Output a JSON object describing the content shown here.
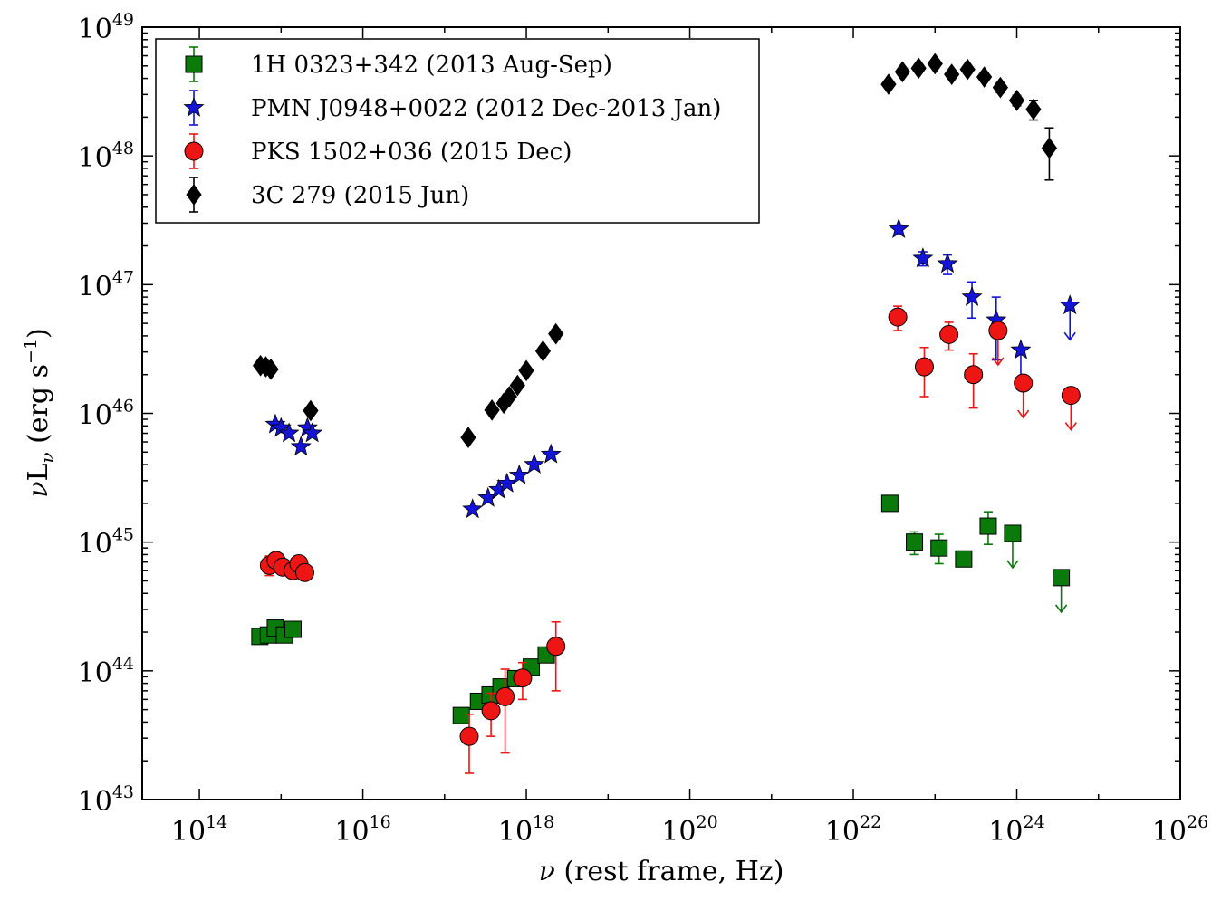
{
  "chart_data": {
    "type": "scatter",
    "xscale": "log",
    "yscale": "log",
    "xlabel_parts": {
      "symbol": "ν",
      "text": " (rest frame, Hz)"
    },
    "ylabel_parts": {
      "nu": "ν",
      "L": "L",
      "sub": "ν",
      "unit": " (erg s",
      "minus": "−1",
      "close": ")"
    },
    "xlim": [
      20000000000000.0,
      1e+26
    ],
    "ylim": [
      1e+43,
      1e+49
    ],
    "x_ticks": [
      {
        "base": "10",
        "exp": "14",
        "value": 100000000000000.0
      },
      {
        "base": "10",
        "exp": "16",
        "value": 1e+16
      },
      {
        "base": "10",
        "exp": "18",
        "value": 1e+18
      },
      {
        "base": "10",
        "exp": "20",
        "value": 1e+20
      },
      {
        "base": "10",
        "exp": "22",
        "value": 1e+22
      },
      {
        "base": "10",
        "exp": "24",
        "value": 1e+24
      },
      {
        "base": "10",
        "exp": "26",
        "value": 1e+26
      }
    ],
    "y_ticks": [
      {
        "base": "10",
        "exp": "43",
        "value": 1e+43
      },
      {
        "base": "10",
        "exp": "44",
        "value": 1e+44
      },
      {
        "base": "10",
        "exp": "45",
        "value": 1e+45
      },
      {
        "base": "10",
        "exp": "46",
        "value": 1e+46
      },
      {
        "base": "10",
        "exp": "47",
        "value": 1e+47
      },
      {
        "base": "10",
        "exp": "48",
        "value": 1e+48
      },
      {
        "base": "10",
        "exp": "49",
        "value": 1e+49
      }
    ],
    "legend_position": "top-left",
    "grid": false,
    "series": [
      {
        "name": "1H 0323+342 (2013 Aug-Sep)",
        "marker": "square",
        "color": "#0a7a0a",
        "points": [
          {
            "x": 550000000000000.0,
            "y": 1.85e+44,
            "lo": 1.75e+44,
            "hi": 1.95e+44
          },
          {
            "x": 700000000000000.0,
            "y": 1.9e+44,
            "lo": 1.8e+44,
            "hi": 2e+44
          },
          {
            "x": 850000000000000.0,
            "y": 2.15e+44,
            "lo": 2.05e+44,
            "hi": 2.25e+44
          },
          {
            "x": 1100000000000000.0,
            "y": 1.9e+44,
            "lo": 1.8e+44,
            "hi": 2e+44
          },
          {
            "x": 1400000000000000.0,
            "y": 2.1e+44,
            "lo": 2e+44,
            "hi": 2.2e+44
          },
          {
            "x": 1.6e+17,
            "y": 4.5e+43,
            "lo": 4.2e+43,
            "hi": 4.8e+43
          },
          {
            "x": 2.6e+17,
            "y": 5.8e+43,
            "lo": 5.4e+43,
            "hi": 6.2e+43
          },
          {
            "x": 3.6e+17,
            "y": 6.5e+43,
            "lo": 6.1e+43,
            "hi": 6.9e+43
          },
          {
            "x": 4.9e+17,
            "y": 7.5e+43,
            "lo": 7e+43,
            "hi": 8e+43
          },
          {
            "x": 7.4e+17,
            "y": 8.7e+43,
            "lo": 8.2e+43,
            "hi": 9.2e+43
          },
          {
            "x": 1.15e+18,
            "y": 1.07e+44,
            "lo": 1e+44,
            "hi": 1.14e+44
          },
          {
            "x": 1.75e+18,
            "y": 1.33e+44,
            "lo": 1.25e+44,
            "hi": 1.42e+44
          },
          {
            "x": 2.8e+22,
            "y": 2e+45,
            "lo": 1.9e+45,
            "hi": 2.1e+45
          },
          {
            "x": 5.6e+22,
            "y": 1e+45,
            "lo": 8e+44,
            "hi": 1.2e+45
          },
          {
            "x": 1.12e+23,
            "y": 9e+44,
            "lo": 6.8e+44,
            "hi": 1.15e+45
          },
          {
            "x": 2.24e+23,
            "y": 7.4e+44,
            "lo": 7e+44,
            "hi": 7.8e+44
          },
          {
            "x": 4.47e+23,
            "y": 1.33e+45,
            "lo": 9.6e+44,
            "hi": 1.72e+45
          },
          {
            "x": 8.9e+23,
            "y": 1.17e+45,
            "upper_limit": true
          },
          {
            "x": 3.5e+24,
            "y": 5.3e+44,
            "upper_limit": true
          }
        ]
      },
      {
        "name": "PMN J0948+0022 (2012 Dec-2013 Jan)",
        "marker": "star",
        "color": "#1414d8",
        "points": [
          {
            "x": 850000000000000.0,
            "y": 8.2e+45,
            "lo": 7.8e+45,
            "hi": 8.6e+45
          },
          {
            "x": 1000000000000000.0,
            "y": 7.7e+45,
            "lo": 7.3e+45,
            "hi": 8.1e+45
          },
          {
            "x": 1250000000000000.0,
            "y": 7e+45,
            "lo": 6.6e+45,
            "hi": 7.4e+45
          },
          {
            "x": 1750000000000000.0,
            "y": 5.5e+45,
            "lo": 5.2e+45,
            "hi": 5.8e+45
          },
          {
            "x": 2100000000000000.0,
            "y": 7.7e+45,
            "lo": 7.3e+45,
            "hi": 8.1e+45
          },
          {
            "x": 2400000000000000.0,
            "y": 7e+45,
            "lo": 6.6e+45,
            "hi": 7.4e+45
          },
          {
            "x": 2.2e+17,
            "y": 1.8e+45,
            "lo": 1.7e+45,
            "hi": 1.9e+45
          },
          {
            "x": 3.4e+17,
            "y": 2.2e+45,
            "lo": 2.1e+45,
            "hi": 2.3e+45
          },
          {
            "x": 4.6e+17,
            "y": 2.55e+45,
            "lo": 2.45e+45,
            "hi": 2.65e+45
          },
          {
            "x": 5.8e+17,
            "y": 2.85e+45,
            "lo": 2.75e+45,
            "hi": 2.95e+45
          },
          {
            "x": 8.2e+17,
            "y": 3.3e+45,
            "lo": 3.15e+45,
            "hi": 3.45e+45
          },
          {
            "x": 1.25e+18,
            "y": 4e+45,
            "lo": 3.8e+45,
            "hi": 4.2e+45
          },
          {
            "x": 2e+18,
            "y": 4.8e+45,
            "lo": 4.6e+45,
            "hi": 5e+45
          },
          {
            "x": 3.6e+22,
            "y": 2.7e+47,
            "lo": 2.5e+47,
            "hi": 2.9e+47
          },
          {
            "x": 7.1e+22,
            "y": 1.6e+47,
            "lo": 1.4e+47,
            "hi": 1.8e+47
          },
          {
            "x": 1.42e+23,
            "y": 1.45e+47,
            "lo": 1.2e+47,
            "hi": 1.7e+47
          },
          {
            "x": 2.83e+23,
            "y": 8e+46,
            "lo": 5.5e+46,
            "hi": 1.05e+47
          },
          {
            "x": 5.6e+23,
            "y": 5.3e+46,
            "lo": 2.6e+46,
            "hi": 8e+46
          },
          {
            "x": 1.12e+24,
            "y": 3.1e+46,
            "upper_limit": true
          },
          {
            "x": 4.47e+24,
            "y": 6.9e+46,
            "upper_limit": true
          }
        ]
      },
      {
        "name": "PKS 1502+036 (2015 Dec)",
        "marker": "circle",
        "color": "#ee1515",
        "points": [
          {
            "x": 720000000000000.0,
            "y": 6.6e+44,
            "lo": 5.5e+44,
            "hi": 7.8e+44
          },
          {
            "x": 870000000000000.0,
            "y": 7.2e+44,
            "lo": 6.6e+44,
            "hi": 7.8e+44
          },
          {
            "x": 1050000000000000.0,
            "y": 6.4e+44,
            "lo": 5.9e+44,
            "hi": 6.9e+44
          },
          {
            "x": 1400000000000000.0,
            "y": 6e+44,
            "lo": 5.6e+44,
            "hi": 6.4e+44
          },
          {
            "x": 1650000000000000.0,
            "y": 6.8e+44,
            "lo": 6.3e+44,
            "hi": 7.3e+44
          },
          {
            "x": 1950000000000000.0,
            "y": 5.8e+44,
            "lo": 5.4e+44,
            "hi": 6.2e+44
          },
          {
            "x": 2e+17,
            "y": 3.1e+43,
            "lo": 1.6e+43,
            "hi": 4.6e+43
          },
          {
            "x": 3.7e+17,
            "y": 4.9e+43,
            "lo": 3.1e+43,
            "hi": 6.7e+43
          },
          {
            "x": 5.5e+17,
            "y": 6.3e+43,
            "lo": 2.3e+43,
            "hi": 1.03e+44
          },
          {
            "x": 9e+17,
            "y": 8.8e+43,
            "lo": 6e+43,
            "hi": 1.16e+44
          },
          {
            "x": 2.3e+18,
            "y": 1.55e+44,
            "lo": 7e+43,
            "hi": 2.4e+44
          },
          {
            "x": 3.5e+22,
            "y": 5.6e+46,
            "lo": 4.4e+46,
            "hi": 6.8e+46
          },
          {
            "x": 7.4e+22,
            "y": 2.3e+46,
            "lo": 1.35e+46,
            "hi": 3.25e+46
          },
          {
            "x": 1.48e+23,
            "y": 4.1e+46,
            "lo": 3.1e+46,
            "hi": 5.1e+46
          },
          {
            "x": 2.95e+23,
            "y": 2e+46,
            "lo": 1.1e+46,
            "hi": 2.9e+46
          },
          {
            "x": 5.9e+23,
            "y": 4.4e+46,
            "upper_limit": true
          },
          {
            "x": 1.2e+24,
            "y": 1.72e+46,
            "upper_limit": true
          },
          {
            "x": 4.6e+24,
            "y": 1.38e+46,
            "upper_limit": true
          }
        ]
      },
      {
        "name": "3C 279 (2015 Jun)",
        "marker": "diamond",
        "color": "#000000",
        "points": [
          {
            "x": 560000000000000.0,
            "y": 2.35e+46,
            "lo": 2.25e+46,
            "hi": 2.45e+46
          },
          {
            "x": 650000000000000.0,
            "y": 2.3e+46,
            "lo": 2.2e+46,
            "hi": 2.4e+46
          },
          {
            "x": 750000000000000.0,
            "y": 2.2e+46,
            "lo": 2.1e+46,
            "hi": 2.3e+46
          },
          {
            "x": 2300000000000000.0,
            "y": 1.05e+46,
            "lo": 1e+46,
            "hi": 1.1e+46
          },
          {
            "x": 1.95e+17,
            "y": 6.5e+45,
            "lo": 6.2e+45,
            "hi": 6.8e+45
          },
          {
            "x": 3.8e+17,
            "y": 1.06e+46,
            "lo": 1.01e+46,
            "hi": 1.11e+46
          },
          {
            "x": 5.3e+17,
            "y": 1.2e+46,
            "lo": 1.14e+46,
            "hi": 1.26e+46
          },
          {
            "x": 6.2e+17,
            "y": 1.35e+46,
            "lo": 1.29e+46,
            "hi": 1.41e+46
          },
          {
            "x": 7.8e+17,
            "y": 1.65e+46,
            "lo": 1.57e+46,
            "hi": 1.73e+46
          },
          {
            "x": 1e+18,
            "y": 2.15e+46,
            "lo": 2.05e+46,
            "hi": 2.25e+46
          },
          {
            "x": 1.6e+18,
            "y": 3.05e+46,
            "lo": 2.9e+46,
            "hi": 3.2e+46
          },
          {
            "x": 2.3e+18,
            "y": 4.15e+46,
            "lo": 3.8e+46,
            "hi": 4.5e+46
          },
          {
            "x": 2.7e+22,
            "y": 3.6e+48,
            "lo": 3.4e+48,
            "hi": 3.8e+48
          },
          {
            "x": 4e+22,
            "y": 4.5e+48,
            "lo": 4.3e+48,
            "hi": 4.7e+48
          },
          {
            "x": 6.3e+22,
            "y": 4.8e+48,
            "lo": 4.6e+48,
            "hi": 5e+48
          },
          {
            "x": 1e+23,
            "y": 5.2e+48,
            "lo": 5e+48,
            "hi": 5.4e+48
          },
          {
            "x": 1.6e+23,
            "y": 4.3e+48,
            "lo": 4.1e+48,
            "hi": 4.5e+48
          },
          {
            "x": 2.5e+23,
            "y": 4.7e+48,
            "lo": 4.5e+48,
            "hi": 4.9e+48
          },
          {
            "x": 4e+23,
            "y": 4.1e+48,
            "lo": 3.9e+48,
            "hi": 4.3e+48
          },
          {
            "x": 6.3e+23,
            "y": 3.4e+48,
            "lo": 3.1e+48,
            "hi": 3.7e+48
          },
          {
            "x": 1e+24,
            "y": 2.7e+48,
            "lo": 2.45e+48,
            "hi": 2.95e+48
          },
          {
            "x": 1.6e+24,
            "y": 2.3e+48,
            "lo": 1.9e+48,
            "hi": 2.7e+48
          },
          {
            "x": 2.5e+24,
            "y": 1.15e+48,
            "lo": 6.5e+47,
            "hi": 1.65e+48
          }
        ]
      }
    ]
  }
}
